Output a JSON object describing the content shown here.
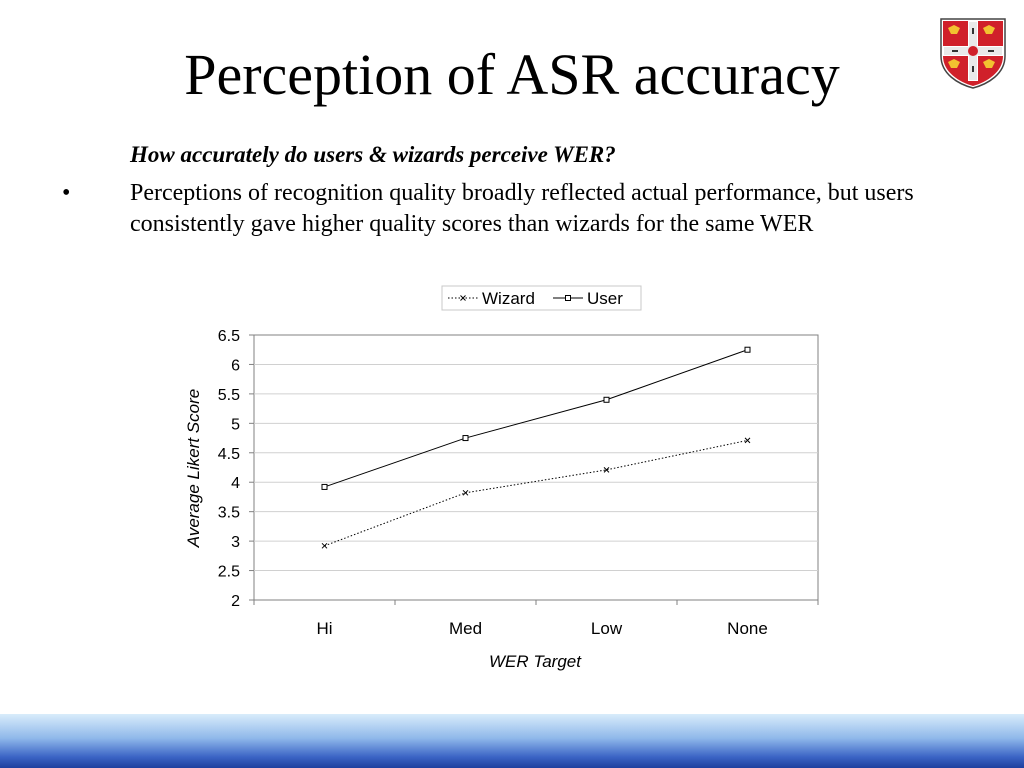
{
  "slide": {
    "title": "Perception of ASR accuracy",
    "question": "How accurately do users & wizards perceive WER?",
    "bullet_marker": "•",
    "bullet_text": "Perceptions of recognition quality broadly reflected actual performance, but users consistently gave higher quality scores than wizards for the same WER"
  },
  "colors": {
    "footer_band_top": "#d8ecfb",
    "footer_band_bottom": "#1e3f9e",
    "crest_red": "#d0202a",
    "crest_gold": "#f2c230"
  },
  "chart_data": {
    "type": "line",
    "title": "",
    "xlabel": "WER Target",
    "ylabel": "Average Likert Score",
    "categories": [
      "Hi",
      "Med",
      "Low",
      "None"
    ],
    "yticks": [
      "6.5",
      "6",
      "5.5",
      "5",
      "4.5",
      "4",
      "3.5",
      "3",
      "2.5",
      "2"
    ],
    "ylim": [
      2,
      6.5
    ],
    "legend_position": "top",
    "grid": true,
    "series": [
      {
        "name": "Wizard",
        "values": [
          2.92,
          3.82,
          4.21,
          4.71
        ],
        "style": "dotted",
        "marker": "x"
      },
      {
        "name": "User",
        "values": [
          3.92,
          4.75,
          5.4,
          6.25
        ],
        "style": "solid",
        "marker": "square"
      }
    ]
  }
}
